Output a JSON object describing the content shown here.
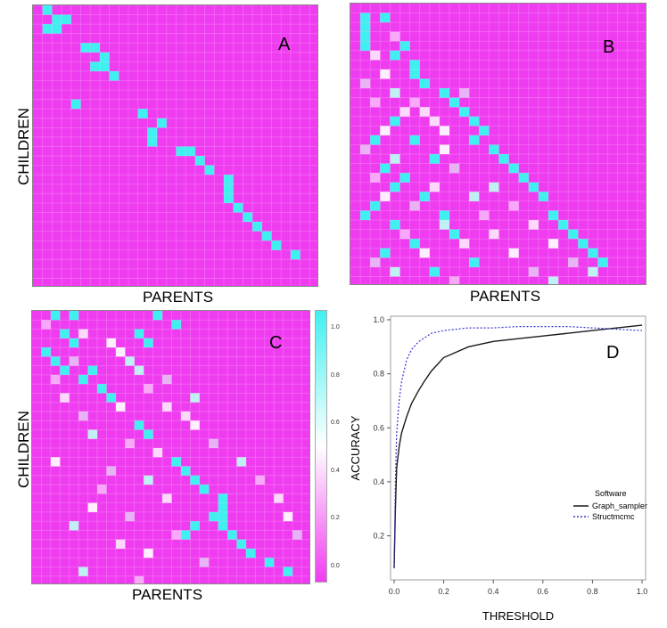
{
  "heatmaps": [
    {
      "letter": "A",
      "xlabel": "PARENTS",
      "ylabel": "CHILDREN"
    },
    {
      "letter": "B",
      "xlabel": "PARENTS",
      "ylabel": ""
    },
    {
      "letter": "C",
      "xlabel": "PARENTS",
      "ylabel": "CHILDREN"
    }
  ],
  "colorbar": {
    "ticks": [
      "1.0",
      "0.8",
      "0.6",
      "0.4",
      "0.2",
      "0.0"
    ],
    "colors": {
      "low": "#f03cf0",
      "mid": "#ffffff",
      "high": "#40f0f0"
    }
  },
  "chart_data": [
    {
      "type": "heatmap",
      "panel": "A",
      "xlabel": "PARENTS",
      "ylabel": "CHILDREN",
      "grid": [
        30,
        30
      ],
      "value_range": [
        0,
        1
      ],
      "high_cells": [
        [
          0,
          1
        ],
        [
          2,
          1
        ],
        [
          1,
          2
        ],
        [
          2,
          2
        ],
        [
          1,
          3
        ],
        [
          4,
          5
        ],
        [
          4,
          6
        ],
        [
          5,
          7
        ],
        [
          6,
          7
        ],
        [
          6,
          6
        ],
        [
          7,
          8
        ],
        [
          10,
          4
        ],
        [
          11,
          11
        ],
        [
          12,
          13
        ],
        [
          13,
          12
        ],
        [
          14,
          12
        ],
        [
          15,
          15
        ],
        [
          15,
          16
        ],
        [
          16,
          17
        ],
        [
          17,
          18
        ],
        [
          18,
          20
        ],
        [
          19,
          20
        ],
        [
          20,
          20
        ],
        [
          21,
          21
        ],
        [
          22,
          22
        ],
        [
          23,
          23
        ],
        [
          24,
          24
        ],
        [
          25,
          25
        ],
        [
          26,
          27
        ]
      ]
    },
    {
      "type": "heatmap",
      "panel": "B",
      "xlabel": "PARENTS",
      "ylabel": "",
      "grid": [
        30,
        30
      ],
      "value_range": [
        0,
        1
      ],
      "high_cells": [
        [
          1,
          1
        ],
        [
          2,
          1
        ],
        [
          3,
          1
        ],
        [
          1,
          3
        ],
        [
          4,
          1
        ],
        [
          4,
          5
        ],
        [
          5,
          4
        ],
        [
          6,
          6
        ],
        [
          7,
          6
        ],
        [
          8,
          7
        ],
        [
          9,
          9
        ],
        [
          10,
          10
        ],
        [
          11,
          11
        ],
        [
          12,
          12
        ],
        [
          13,
          13
        ],
        [
          14,
          12
        ],
        [
          15,
          14
        ],
        [
          16,
          15
        ],
        [
          17,
          16
        ],
        [
          18,
          17
        ],
        [
          19,
          18
        ],
        [
          20,
          19
        ],
        [
          22,
          20
        ],
        [
          23,
          21
        ],
        [
          24,
          22
        ],
        [
          25,
          23
        ],
        [
          26,
          24
        ],
        [
          27,
          25
        ],
        [
          12,
          4
        ],
        [
          14,
          6
        ],
        [
          16,
          8
        ],
        [
          17,
          3
        ],
        [
          18,
          5
        ],
        [
          20,
          7
        ],
        [
          21,
          2
        ],
        [
          22,
          9
        ],
        [
          23,
          4
        ],
        [
          24,
          10
        ],
        [
          25,
          6
        ],
        [
          26,
          3
        ],
        [
          27,
          12
        ],
        [
          28,
          8
        ],
        [
          14,
          2
        ],
        [
          19,
          4
        ],
        [
          22,
          1
        ]
      ],
      "light_cells": [
        [
          3,
          4
        ],
        [
          5,
          2
        ],
        [
          7,
          3
        ],
        [
          8,
          1
        ],
        [
          9,
          4
        ],
        [
          10,
          2
        ],
        [
          11,
          5
        ],
        [
          13,
          3
        ],
        [
          15,
          1
        ],
        [
          16,
          4
        ],
        [
          18,
          2
        ],
        [
          19,
          8
        ],
        [
          20,
          3
        ],
        [
          21,
          6
        ],
        [
          23,
          9
        ],
        [
          24,
          5
        ],
        [
          25,
          11
        ],
        [
          26,
          7
        ],
        [
          27,
          2
        ],
        [
          28,
          4
        ],
        [
          29,
          10
        ],
        [
          12,
          8
        ],
        [
          15,
          9
        ],
        [
          17,
          10
        ],
        [
          20,
          12
        ],
        [
          22,
          13
        ],
        [
          24,
          14
        ],
        [
          26,
          16
        ],
        [
          28,
          18
        ],
        [
          29,
          20
        ],
        [
          10,
          6
        ],
        [
          11,
          7
        ],
        [
          13,
          9
        ],
        [
          9,
          11
        ],
        [
          19,
          14
        ],
        [
          21,
          16
        ],
        [
          23,
          18
        ],
        [
          25,
          20
        ],
        [
          27,
          22
        ],
        [
          28,
          24
        ]
      ]
    },
    {
      "type": "heatmap",
      "panel": "C",
      "xlabel": "PARENTS",
      "ylabel": "CHILDREN",
      "grid": [
        30,
        30
      ],
      "value_range": [
        0,
        1
      ],
      "colorbar_ticks": [
        1.0,
        0.8,
        0.6,
        0.4,
        0.2,
        0.0
      ],
      "high_cells": [
        [
          0,
          2
        ],
        [
          0,
          4
        ],
        [
          0,
          13
        ],
        [
          1,
          15
        ],
        [
          2,
          3
        ],
        [
          2,
          11
        ],
        [
          3,
          12
        ],
        [
          4,
          1
        ],
        [
          5,
          2
        ],
        [
          6,
          6
        ],
        [
          7,
          5
        ],
        [
          8,
          7
        ],
        [
          9,
          8
        ],
        [
          12,
          11
        ],
        [
          13,
          12
        ],
        [
          16,
          15
        ],
        [
          17,
          16
        ],
        [
          18,
          17
        ],
        [
          19,
          18
        ],
        [
          20,
          20
        ],
        [
          21,
          20
        ],
        [
          22,
          20
        ],
        [
          23,
          20
        ],
        [
          24,
          21
        ],
        [
          25,
          22
        ],
        [
          26,
          23
        ],
        [
          27,
          25
        ],
        [
          28,
          27
        ],
        [
          22,
          19
        ],
        [
          23,
          17
        ],
        [
          24,
          16
        ],
        [
          6,
          3
        ],
        [
          3,
          4
        ]
      ],
      "light_cells": [
        [
          1,
          1
        ],
        [
          2,
          5
        ],
        [
          3,
          8
        ],
        [
          5,
          4
        ],
        [
          6,
          11
        ],
        [
          7,
          2
        ],
        [
          9,
          3
        ],
        [
          10,
          9
        ],
        [
          11,
          5
        ],
        [
          13,
          6
        ],
        [
          14,
          10
        ],
        [
          15,
          13
        ],
        [
          16,
          2
        ],
        [
          17,
          8
        ],
        [
          18,
          12
        ],
        [
          19,
          7
        ],
        [
          20,
          14
        ],
        [
          21,
          6
        ],
        [
          22,
          10
        ],
        [
          23,
          4
        ],
        [
          24,
          15
        ],
        [
          25,
          9
        ],
        [
          26,
          12
        ],
        [
          27,
          18
        ],
        [
          28,
          5
        ],
        [
          29,
          11
        ],
        [
          10,
          14
        ],
        [
          12,
          17
        ],
        [
          14,
          19
        ],
        [
          16,
          22
        ],
        [
          18,
          24
        ],
        [
          20,
          26
        ],
        [
          22,
          27
        ],
        [
          24,
          28
        ],
        [
          5,
          10
        ],
        [
          8,
          12
        ],
        [
          11,
          16
        ],
        [
          4,
          9
        ],
        [
          7,
          14
        ],
        [
          9,
          17
        ]
      ]
    },
    {
      "type": "line",
      "panel": "D",
      "xlabel": "THRESHOLD",
      "ylabel": "ACCURACY",
      "xlim": [
        0.0,
        1.0
      ],
      "ylim": [
        0.05,
        1.0
      ],
      "xticks": [
        "0.0",
        "0.2",
        "0.4",
        "0.6",
        "0.8",
        "1.0"
      ],
      "yticks": [
        "0.2",
        "0.4",
        "0.6",
        "0.8",
        "1.0"
      ],
      "legend_title": "Software",
      "legend_position": "right",
      "series": [
        {
          "name": "Graph_sampler",
          "color": "#1a1a1a",
          "dash": "solid",
          "x": [
            0.0,
            0.005,
            0.01,
            0.02,
            0.03,
            0.05,
            0.07,
            0.1,
            0.12,
            0.15,
            0.2,
            0.25,
            0.3,
            0.4,
            0.5,
            0.6,
            0.7,
            0.8,
            0.9,
            1.0
          ],
          "y": [
            0.08,
            0.3,
            0.45,
            0.53,
            0.58,
            0.64,
            0.69,
            0.74,
            0.77,
            0.81,
            0.86,
            0.88,
            0.9,
            0.92,
            0.93,
            0.94,
            0.95,
            0.96,
            0.97,
            0.98
          ]
        },
        {
          "name": "Structmcmc",
          "color": "#3333cc",
          "dash": "dotted",
          "x": [
            0.0,
            0.005,
            0.01,
            0.02,
            0.03,
            0.05,
            0.07,
            0.1,
            0.15,
            0.2,
            0.25,
            0.3,
            0.4,
            0.5,
            0.6,
            0.7,
            0.8,
            0.9,
            1.0
          ],
          "y": [
            0.08,
            0.4,
            0.58,
            0.7,
            0.77,
            0.85,
            0.89,
            0.92,
            0.95,
            0.96,
            0.965,
            0.97,
            0.97,
            0.975,
            0.975,
            0.975,
            0.97,
            0.965,
            0.96
          ]
        }
      ]
    }
  ]
}
